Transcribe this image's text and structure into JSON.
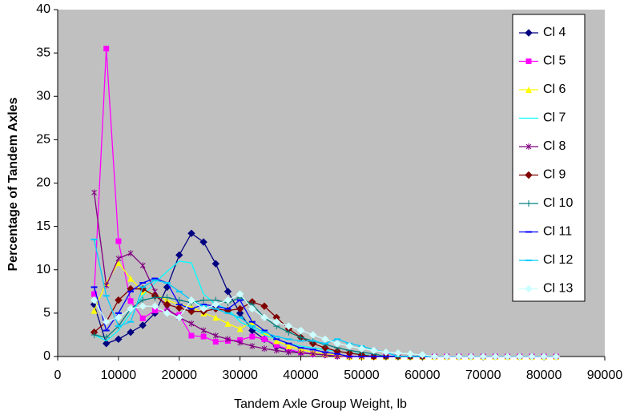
{
  "chart_data": {
    "type": "line",
    "x_label": "Tandem Axle Group Weight, lb",
    "y_label": "Percentage of Tandem Axles",
    "x": [
      6000,
      8000,
      10000,
      12000,
      14000,
      16000,
      18000,
      20000,
      22000,
      24000,
      26000,
      28000,
      30000,
      32000,
      34000,
      36000,
      38000,
      40000,
      42000,
      44000,
      46000,
      48000,
      50000,
      52000,
      54000,
      56000,
      58000,
      60000,
      62000,
      64000,
      66000,
      68000,
      70000,
      72000,
      74000,
      76000,
      78000,
      80000,
      82000
    ],
    "xlim": [
      0,
      90000
    ],
    "xticks": [
      0,
      10000,
      20000,
      30000,
      40000,
      50000,
      60000,
      70000,
      80000,
      90000
    ],
    "ylim": [
      0,
      40
    ],
    "yticks": [
      0,
      5,
      10,
      15,
      20,
      25,
      30,
      35,
      40
    ],
    "grid": false,
    "legend": "top-right",
    "series": [
      {
        "name": "Cl 4",
        "color": "#000080",
        "marker": "diamond",
        "values": [
          6,
          1.5,
          2,
          2.8,
          3.6,
          5,
          8,
          11.7,
          14.2,
          13.2,
          10.7,
          7.5,
          5,
          3,
          2,
          1.2,
          0.7,
          0.5,
          0.3,
          0.2,
          0.1,
          0,
          0,
          0,
          0,
          0,
          0,
          0,
          0,
          0,
          0,
          0,
          0,
          0,
          0,
          0,
          0,
          0,
          0
        ]
      },
      {
        "name": "Cl 5",
        "color": "#ff00ff",
        "marker": "square",
        "values": [
          7.2,
          35.5,
          13.3,
          6.4,
          4.4,
          5.3,
          5.2,
          4.8,
          2.4,
          2.3,
          1.7,
          1.8,
          1.9,
          2.3,
          2,
          1.3,
          0.8,
          0.5,
          0.3,
          0.2,
          0.1,
          0,
          0,
          0,
          0,
          0,
          0,
          0,
          0,
          0,
          0,
          0,
          0,
          0,
          0,
          0,
          0,
          0,
          0
        ]
      },
      {
        "name": "Cl 6",
        "color": "#ffff00",
        "marker": "triangle",
        "values": [
          5.3,
          8.5,
          10.8,
          9,
          7.5,
          7.2,
          6.5,
          6,
          5.7,
          5,
          4.5,
          3.8,
          3.2,
          4,
          2.8,
          1.8,
          1.2,
          0.8,
          0.5,
          0.3,
          0.2,
          0,
          0,
          0,
          0,
          0,
          0,
          0,
          0,
          0,
          0,
          0,
          0,
          0,
          0,
          0,
          0,
          0,
          0
        ]
      },
      {
        "name": "Cl 7",
        "color": "#00ffff",
        "marker": "none",
        "values": [
          2.5,
          1.8,
          3,
          5,
          7,
          8.5,
          9.8,
          11,
          10.8,
          7.2,
          6,
          5.5,
          4,
          3.3,
          2.5,
          2,
          1.5,
          1.2,
          1,
          0.8,
          0.6,
          0.4,
          0.3,
          0,
          0,
          0,
          0,
          0,
          0,
          0,
          0,
          0,
          0,
          0,
          0,
          0,
          0,
          0,
          0
        ]
      },
      {
        "name": "Cl 8",
        "color": "#800080",
        "marker": "x",
        "values": [
          18.9,
          8.2,
          11.3,
          11.9,
          10.5,
          7.5,
          5.5,
          4.5,
          3.8,
          3,
          2.4,
          2,
          1.6,
          1.2,
          0.9,
          0.7,
          0.5,
          0.4,
          0.3,
          0.2,
          0,
          0,
          0,
          0,
          0,
          0,
          0,
          0,
          0,
          0,
          0,
          0,
          0,
          0,
          0,
          0,
          0,
          0,
          0
        ]
      },
      {
        "name": "Cl 9",
        "color": "#800000",
        "marker": "diamond",
        "values": [
          2.8,
          4,
          6.5,
          7.8,
          7.8,
          7,
          6,
          5.6,
          5.2,
          5.2,
          5.5,
          5.3,
          5.5,
          6.3,
          5.8,
          4.5,
          3.2,
          2.2,
          1.5,
          1,
          0.6,
          0.4,
          0.2,
          0,
          0,
          0,
          0,
          0,
          0,
          0,
          0,
          0,
          0,
          0,
          0,
          0,
          0,
          0,
          0
        ]
      },
      {
        "name": "Cl 10",
        "color": "#008080",
        "marker": "plus",
        "values": [
          2.5,
          2.2,
          3.5,
          5.5,
          6.5,
          6.8,
          6.8,
          6.5,
          6.2,
          6.5,
          6.5,
          6.2,
          6.8,
          6,
          4.5,
          3.5,
          2.8,
          2.2,
          1.8,
          1.4,
          1,
          0.7,
          0.5,
          0.3,
          0,
          0,
          0,
          0,
          0,
          0,
          0,
          0,
          0,
          0,
          0,
          0,
          0,
          0,
          0
        ]
      },
      {
        "name": "Cl 11",
        "color": "#0000ff",
        "marker": "dash",
        "values": [
          8,
          3,
          5,
          7.5,
          8.5,
          9,
          8.5,
          6,
          5.5,
          6,
          5.8,
          5.5,
          6.5,
          4,
          3,
          2,
          1.5,
          1,
          0.8,
          0.5,
          0.3,
          0,
          0,
          0,
          0,
          0,
          0,
          0,
          0,
          0,
          0,
          0,
          0,
          0,
          0,
          0,
          0,
          0,
          0
        ]
      },
      {
        "name": "Cl 12",
        "color": "#00ccff",
        "marker": "dash",
        "values": [
          13.5,
          7,
          3.5,
          4,
          8,
          8.8,
          8.5,
          7.5,
          6.5,
          5.8,
          5.5,
          5,
          4.5,
          3.5,
          2.8,
          2.3,
          2,
          1.8,
          1.8,
          1.5,
          2,
          1.5,
          1.2,
          0.8,
          0.5,
          0,
          0,
          0,
          0,
          0,
          0,
          0,
          0,
          0,
          0,
          0,
          0,
          0,
          0
        ]
      },
      {
        "name": "Cl 13",
        "color": "#ccffff",
        "marker": "diamond",
        "values": [
          6.5,
          4,
          4.5,
          5.5,
          5.8,
          5.8,
          5,
          4.5,
          6.5,
          5.5,
          6,
          6.5,
          7.2,
          5.5,
          4.5,
          4,
          3.5,
          3,
          2.5,
          2,
          1.5,
          1.2,
          0.9,
          0.7,
          0.5,
          0.4,
          0.3,
          0.2,
          0,
          0,
          0,
          0,
          0,
          0,
          0,
          0,
          0,
          0,
          0
        ]
      }
    ]
  }
}
